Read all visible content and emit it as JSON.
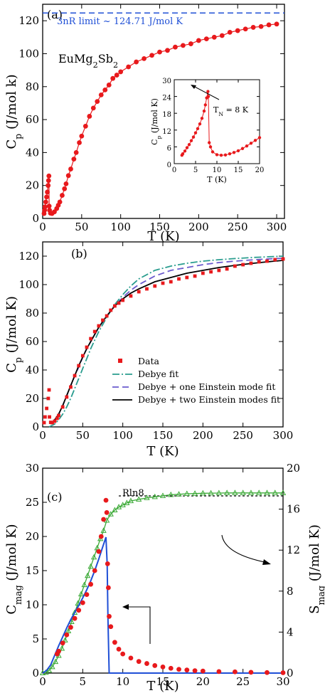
{
  "chart_data": [
    {
      "panel": "(a)",
      "type": "scatter",
      "xlabel": "T (K)",
      "ylabel": "C_p (J/mol k)",
      "xlim": [
        0,
        310
      ],
      "ylim": [
        0,
        130
      ],
      "xticks": [
        0,
        50,
        100,
        150,
        200,
        250,
        300
      ],
      "yticks": [
        0,
        20,
        40,
        60,
        80,
        100,
        120
      ],
      "compound": "EuMg2Sb2",
      "annotation": "3nR limit ~ 124.71 J/mol K",
      "limit_value": 124.71,
      "series": [
        {
          "style": "red-dots-line",
          "color": "#e8191c",
          "x": [
            1.8,
            2.5,
            3,
            4,
            5,
            6,
            7,
            7.5,
            8,
            8.3,
            8.8,
            10,
            12,
            15,
            18,
            20,
            22,
            25,
            28,
            30,
            33,
            36,
            40,
            43,
            47,
            50,
            55,
            60,
            65,
            70,
            75,
            80,
            85,
            90,
            95,
            100,
            110,
            120,
            130,
            140,
            150,
            160,
            170,
            180,
            190,
            200,
            210,
            220,
            230,
            240,
            250,
            260,
            270,
            280,
            290,
            300
          ],
          "y": [
            3,
            5,
            7,
            10,
            13,
            16,
            20,
            23,
            25.8,
            7.5,
            5,
            3.2,
            3,
            4,
            6,
            8,
            10,
            14,
            18,
            21,
            26,
            30,
            36,
            40,
            46,
            50,
            56,
            62,
            67,
            71,
            75,
            78,
            81,
            85,
            87,
            89,
            92,
            95,
            97,
            99,
            101,
            102,
            104,
            105,
            106,
            108,
            109,
            110,
            111,
            113,
            114,
            115,
            116,
            116.5,
            117.5,
            118
          ]
        }
      ],
      "inset": {
        "xlabel": "T (K)",
        "ylabel": "C_p (J/mol K)",
        "xlim": [
          0,
          20
        ],
        "ylim": [
          0,
          30
        ],
        "xticks": [
          0,
          5,
          10,
          15,
          20
        ],
        "yticks": [
          0,
          6,
          12,
          18,
          24,
          30
        ],
        "annotation": "T_N = 8 K",
        "x": [
          1.8,
          2,
          2.5,
          3,
          3.5,
          4,
          4.5,
          5,
          5.5,
          6,
          6.5,
          7,
          7.3,
          7.6,
          7.9,
          8,
          8.2,
          8.5,
          9,
          10,
          11,
          12,
          13,
          14,
          15,
          16,
          17,
          18,
          19,
          20
        ],
        "y": [
          3,
          3.5,
          4.5,
          5.7,
          6.8,
          8.2,
          9.5,
          11,
          12.5,
          14.2,
          16.2,
          18.8,
          21,
          23.5,
          25.8,
          24,
          7.5,
          6,
          4.2,
          3.2,
          3,
          3.1,
          3.5,
          4,
          4.6,
          5.4,
          6.3,
          7.3,
          8.3,
          9.3
        ]
      }
    },
    {
      "panel": "(b)",
      "type": "line",
      "xlabel": "T (K)",
      "ylabel": "C_p (J/mol K)",
      "xlim": [
        0,
        300
      ],
      "ylim": [
        0,
        130
      ],
      "xticks": [
        0,
        50,
        100,
        150,
        200,
        250,
        300
      ],
      "yticks": [
        0,
        20,
        40,
        60,
        80,
        100,
        120
      ],
      "legend_position": "center-right",
      "series": [
        {
          "name": "Data",
          "style": "red-squares",
          "color": "#e8191c",
          "x": [
            1.8,
            3,
            5,
            7,
            8,
            8.5,
            10,
            12,
            15,
            18,
            20,
            25,
            30,
            35,
            40,
            45,
            50,
            55,
            60,
            65,
            70,
            75,
            80,
            85,
            90,
            95,
            100,
            110,
            120,
            130,
            140,
            150,
            160,
            170,
            180,
            190,
            200,
            210,
            220,
            230,
            240,
            250,
            260,
            270,
            280,
            290,
            300
          ],
          "y": [
            3,
            7,
            13,
            20,
            26,
            7,
            3.2,
            3,
            4,
            6,
            8,
            14,
            21,
            28,
            36,
            43,
            50,
            56,
            62,
            67,
            71,
            75,
            78,
            82,
            85,
            87,
            89,
            92,
            95,
            97,
            99,
            101,
            102,
            104,
            105,
            106,
            108,
            109,
            110,
            111,
            113,
            114,
            115,
            116,
            116.5,
            117.5,
            118
          ]
        },
        {
          "name": "Debye fit",
          "style": "dash-dot",
          "color": "#2a9d8f",
          "x": [
            8,
            15,
            20,
            25,
            30,
            35,
            40,
            45,
            50,
            55,
            60,
            65,
            70,
            75,
            80,
            90,
            100,
            110,
            120,
            140,
            160,
            180,
            200,
            220,
            240,
            260,
            280,
            300
          ],
          "y": [
            0,
            2,
            5,
            9,
            14,
            20,
            27,
            34,
            41,
            48,
            55,
            61,
            67,
            72,
            77,
            86,
            93,
            99,
            104,
            110,
            113,
            115,
            116.5,
            117.5,
            118.3,
            119,
            119.5,
            120
          ]
        },
        {
          "name": "Debye + one Einstein mode fit",
          "style": "dashed",
          "color": "#6a5acd",
          "x": [
            10,
            15,
            20,
            25,
            30,
            35,
            40,
            45,
            50,
            55,
            60,
            65,
            70,
            75,
            80,
            90,
            100,
            110,
            120,
            140,
            160,
            180,
            200,
            220,
            240,
            260,
            280,
            300
          ],
          "y": [
            2,
            5,
            9,
            15,
            22,
            29,
            36,
            42,
            49,
            55,
            60,
            65,
            70,
            74,
            78,
            85,
            91,
            96,
            100,
            106,
            110,
            112,
            114,
            115.5,
            116.5,
            117.3,
            118,
            118.5
          ]
        },
        {
          "name": "Debye + two Einstein modes fit",
          "style": "solid",
          "color": "#000000",
          "x": [
            10,
            15,
            20,
            25,
            30,
            35,
            40,
            45,
            50,
            55,
            60,
            65,
            70,
            75,
            80,
            90,
            100,
            110,
            120,
            140,
            160,
            180,
            200,
            220,
            240,
            260,
            280,
            300
          ],
          "y": [
            2,
            5,
            9,
            15,
            22,
            29,
            36,
            43,
            49,
            55,
            60,
            65,
            70,
            74,
            78,
            85,
            90,
            94,
            97,
            102,
            105,
            108,
            110,
            112,
            113.5,
            114.8,
            116,
            117
          ]
        }
      ]
    },
    {
      "panel": "(c)",
      "type": "scatter",
      "xlabel": "T (K)",
      "ylabel": "C_mag (J/mol K)",
      "ylabel_right": "S_mag (J/mol K)",
      "xlim": [
        0,
        30
      ],
      "ylim": [
        0,
        30
      ],
      "ylim_right": [
        0,
        20
      ],
      "xticks": [
        0,
        5,
        10,
        15,
        20,
        25,
        30
      ],
      "yticks": [
        0,
        5,
        10,
        15,
        20,
        25,
        30
      ],
      "yticks_right": [
        0,
        4,
        8,
        12,
        16,
        20
      ],
      "annotation": "Rln8",
      "rln8_value": 17.29,
      "series": [
        {
          "style": "red-dots",
          "axis": "left",
          "color": "#e8191c",
          "x": [
            1.8,
            2,
            2.5,
            3,
            3.5,
            4,
            4.5,
            5,
            5.5,
            6,
            6.5,
            7,
            7.3,
            7.6,
            7.9,
            8,
            8.1,
            8.2,
            8.3,
            8.5,
            9,
            9.5,
            10,
            11,
            12,
            13,
            14,
            15,
            16,
            17,
            18,
            19,
            20,
            22,
            24,
            26,
            28,
            30
          ],
          "y": [
            2.8,
            3.2,
            4.4,
            5.6,
            6.7,
            8,
            9.2,
            10.3,
            11.5,
            13,
            15,
            17.8,
            20,
            22.5,
            25.3,
            23.5,
            16,
            12.5,
            8.3,
            6.8,
            4.5,
            3.5,
            2.8,
            2.2,
            1.7,
            1.4,
            1.1,
            0.9,
            0.7,
            0.55,
            0.45,
            0.35,
            0.3,
            0.22,
            0.18,
            0.12,
            0.08,
            0.05
          ]
        },
        {
          "style": "blue-line",
          "axis": "left",
          "color": "#1f4fd6",
          "x": [
            0,
            0.5,
            1,
            1.5,
            2,
            2.5,
            3,
            3.5,
            4,
            4.5,
            5,
            5.5,
            6,
            6.5,
            7,
            7.5,
            7.9,
            8.05,
            8.15,
            8.3,
            10,
            15,
            20,
            25,
            30
          ],
          "y": [
            0,
            0.4,
            1.2,
            2.6,
            4,
            5.3,
            6.6,
            7.8,
            8.9,
            9.9,
            11,
            12.2,
            13.5,
            15,
            16.7,
            18.5,
            19.9,
            16,
            8,
            0,
            0,
            0,
            0,
            0,
            0
          ]
        },
        {
          "style": "green-triangles",
          "axis": "right",
          "color": "#3aa935",
          "x": [
            0,
            0.4,
            0.8,
            1.2,
            1.6,
            2,
            2.4,
            2.8,
            3.2,
            3.6,
            4,
            4.4,
            4.8,
            5.2,
            5.6,
            6,
            6.4,
            6.8,
            7.2,
            7.6,
            8,
            8.5,
            9,
            9.5,
            10,
            10.5,
            11,
            12,
            13,
            14,
            15,
            16,
            17,
            18,
            19,
            20,
            21,
            22,
            23,
            24,
            25,
            26,
            27,
            28,
            29,
            30
          ],
          "y": [
            0,
            0.05,
            0.25,
            0.6,
            1.1,
            1.7,
            2.4,
            3.2,
            4.1,
            5,
            5.9,
            6.8,
            7.7,
            8.6,
            9.5,
            10.4,
            11.3,
            12.2,
            13.1,
            13.9,
            14.9,
            15.5,
            15.9,
            16.2,
            16.4,
            16.6,
            16.8,
            16.95,
            17.1,
            17.2,
            17.3,
            17.4,
            17.45,
            17.5,
            17.52,
            17.55,
            17.56,
            17.57,
            17.58,
            17.58,
            17.58,
            17.58,
            17.58,
            17.58,
            17.58,
            17.58
          ]
        }
      ]
    }
  ]
}
